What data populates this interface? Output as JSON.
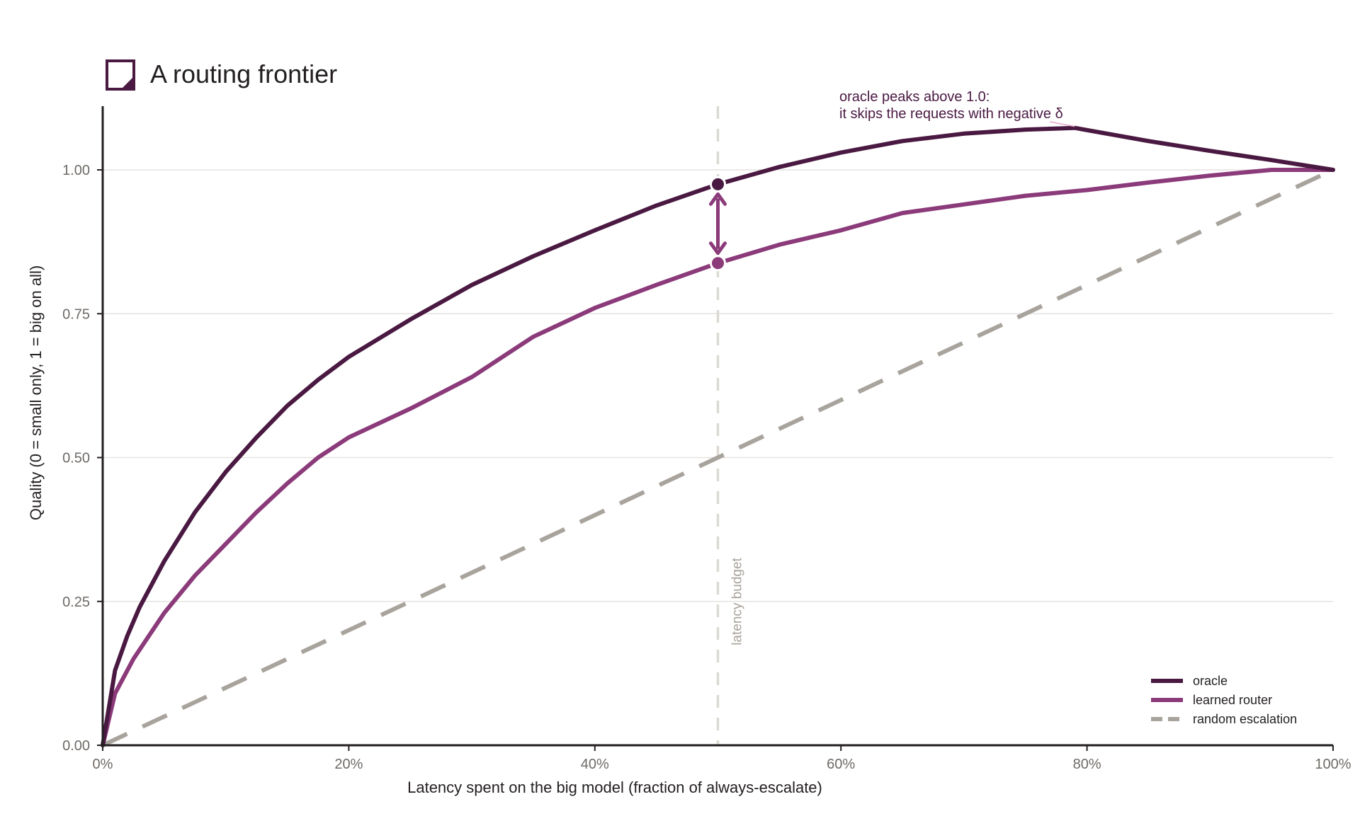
{
  "chart_data": {
    "type": "line",
    "title": "A routing frontier",
    "xlabel": "Latency spent on the big model (fraction of always-escalate)",
    "ylabel": "Quality (0 = small only, 1 = big on all)",
    "xlim": [
      0,
      1
    ],
    "ylim": [
      0,
      1.1
    ],
    "x_ticks": [
      0,
      0.2,
      0.4,
      0.6,
      0.8,
      1.0
    ],
    "x_tick_labels": [
      "0%",
      "20%",
      "40%",
      "60%",
      "80%",
      "100%"
    ],
    "y_ticks": [
      0,
      0.25,
      0.5,
      0.75,
      1.0
    ],
    "y_tick_labels": [
      "0.00",
      "0.25",
      "0.50",
      "0.75",
      "1.00"
    ],
    "grid": "horizontal",
    "legend_position": "bottom-right",
    "colors": {
      "oracle": "#4a1942",
      "learned_router": "#8b3a7a",
      "random": "#a8a39c",
      "budget_line": "#dcd9d3",
      "gap_arrow": "#8b3a7a"
    },
    "series": [
      {
        "name": "oracle",
        "x": [
          0,
          0.01,
          0.02,
          0.03,
          0.05,
          0.075,
          0.1,
          0.125,
          0.15,
          0.175,
          0.2,
          0.25,
          0.3,
          0.35,
          0.4,
          0.45,
          0.5,
          0.55,
          0.6,
          0.65,
          0.7,
          0.75,
          0.79,
          0.85,
          0.9,
          0.95,
          1.0
        ],
        "y": [
          0,
          0.13,
          0.19,
          0.24,
          0.32,
          0.405,
          0.475,
          0.535,
          0.59,
          0.635,
          0.675,
          0.74,
          0.8,
          0.85,
          0.895,
          0.938,
          0.975,
          1.005,
          1.03,
          1.05,
          1.063,
          1.07,
          1.073,
          1.05,
          1.033,
          1.017,
          1.0
        ]
      },
      {
        "name": "learned router",
        "x": [
          0,
          0.01,
          0.025,
          0.05,
          0.075,
          0.1,
          0.125,
          0.15,
          0.175,
          0.2,
          0.25,
          0.3,
          0.35,
          0.4,
          0.45,
          0.5,
          0.55,
          0.6,
          0.65,
          0.7,
          0.75,
          0.8,
          0.85,
          0.9,
          0.95,
          1.0
        ],
        "y": [
          0,
          0.09,
          0.15,
          0.23,
          0.295,
          0.35,
          0.405,
          0.455,
          0.5,
          0.535,
          0.585,
          0.64,
          0.71,
          0.76,
          0.8,
          0.838,
          0.87,
          0.895,
          0.925,
          0.94,
          0.955,
          0.965,
          0.978,
          0.99,
          1.0,
          1.0
        ]
      },
      {
        "name": "random escalation",
        "x": [
          0,
          1
        ],
        "y": [
          0,
          1
        ]
      }
    ],
    "budget": {
      "x": 0.5,
      "label": "latency budget"
    },
    "gap_points": {
      "x": 0.5,
      "oracle_y": 0.975,
      "router_y": 0.838
    },
    "annotation": {
      "x": 0.79,
      "y": 1.073,
      "line1": "oracle peaks above 1.0:",
      "line2": "it skips the requests with negative δ"
    },
    "legend": [
      "oracle",
      "learned router",
      "random escalation"
    ]
  }
}
